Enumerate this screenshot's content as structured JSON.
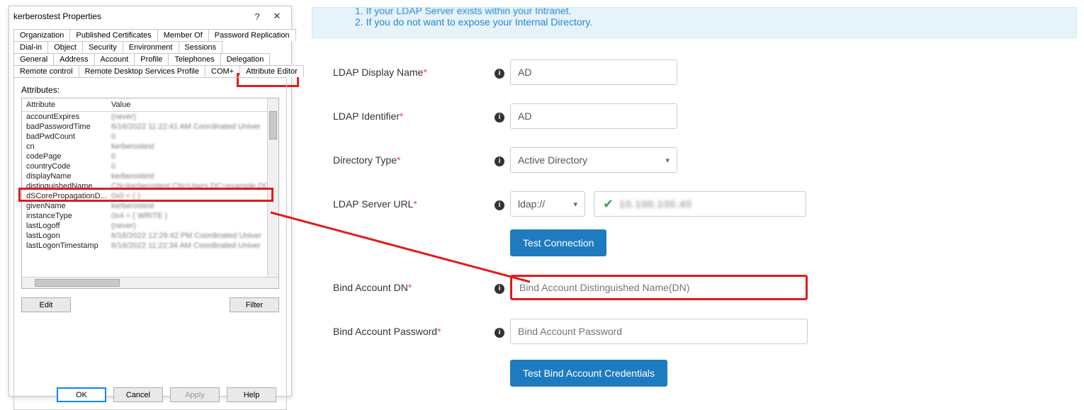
{
  "dialog": {
    "title": "kerberostest Properties",
    "help_btn": "?",
    "close_btn": "✕",
    "tab_rows": [
      [
        "Organization",
        "Published Certificates",
        "Member Of",
        "Password Replication"
      ],
      [
        "Dial-in",
        "Object",
        "Security",
        "Environment",
        "Sessions"
      ],
      [
        "General",
        "Address",
        "Account",
        "Profile",
        "Telephones",
        "Delegation"
      ],
      [
        "Remote control",
        "Remote Desktop Services Profile",
        "COM+",
        "Attribute Editor"
      ]
    ],
    "active_tab": "Attribute Editor",
    "attributes_label": "Attributes:",
    "header_a": "Attribute",
    "header_b": "Value",
    "rows": [
      {
        "a": "accountExpires",
        "b": "(never)"
      },
      {
        "a": "badPasswordTime",
        "b": "6/16/2022 11:22:41 AM Coordinated Univer"
      },
      {
        "a": "badPwdCount",
        "b": "0"
      },
      {
        "a": "cn",
        "b": "kerberostest"
      },
      {
        "a": "codePage",
        "b": "0"
      },
      {
        "a": "countryCode",
        "b": "0"
      },
      {
        "a": "displayName",
        "b": "kerberostest"
      },
      {
        "a": "distinguishedName",
        "b": "CN=kerberostest,CN=Users,DC=example,DC"
      },
      {
        "a": "dSCorePropagationD...",
        "b": "0x0 = (  )"
      },
      {
        "a": "givenName",
        "b": "kerberostest"
      },
      {
        "a": "instanceType",
        "b": "0x4 = ( WRITE )"
      },
      {
        "a": "lastLogoff",
        "b": "(never)"
      },
      {
        "a": "lastLogon",
        "b": "6/16/2022 12:29:42 PM Coordinated Univer"
      },
      {
        "a": "lastLogonTimestamp",
        "b": "6/16/2022 11:22:34 AM Coordinated Univer"
      }
    ],
    "highlight_row_index": 7,
    "edit_btn": "Edit",
    "filter_btn": "Filter",
    "ok": "OK",
    "cancel": "Cancel",
    "apply": "Apply",
    "help": "Help"
  },
  "form": {
    "banner_line1": "1. If your LDAP Server exists within your Intranet.",
    "banner_line2": "2. If you do not want to expose your Internal Directory.",
    "display_name_label": "LDAP Display Name",
    "display_name_value": "AD",
    "identifier_label": "LDAP Identifier",
    "identifier_value": "AD",
    "dir_type_label": "Directory Type",
    "dir_type_value": "Active Directory",
    "server_url_label": "LDAP Server URL",
    "server_scheme": "ldap://",
    "server_value_masked": "10.100.100.40",
    "test_conn": "Test Connection",
    "bind_dn_label": "Bind Account DN",
    "bind_dn_placeholder": "Bind Account Distinguished Name(DN)",
    "bind_pw_label": "Bind Account Password",
    "bind_pw_placeholder": "Bind Account Password",
    "test_creds": "Test Bind Account Credentials"
  },
  "colors": {
    "highlight": "#e11b1b",
    "banner_bg": "#e6f3fb",
    "banner_text": "#2788c7",
    "btn_blue": "#1f7bbf"
  }
}
